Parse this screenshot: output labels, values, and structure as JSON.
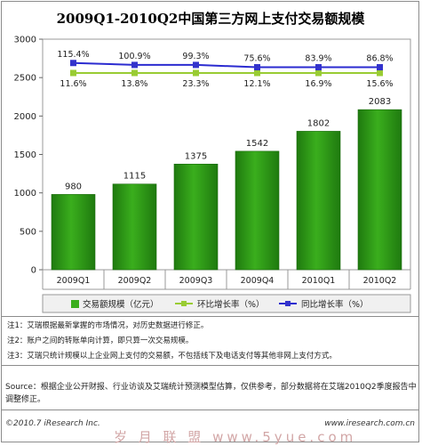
{
  "chart_data": {
    "type": "bar",
    "title": "2009Q1-2010Q2中国第三方网上支付交易额规模",
    "categories": [
      "2009Q1",
      "2009Q2",
      "2009Q3",
      "2009Q4",
      "2010Q1",
      "2010Q2"
    ],
    "ylim": [
      0,
      3000
    ],
    "yticks": [
      0,
      500,
      1000,
      1500,
      2000,
      2500,
      3000
    ],
    "grid": false,
    "legend_placement": "bottom",
    "series": [
      {
        "name": "交易额规模（亿元）",
        "type": "bar",
        "values": [
          980,
          1115,
          1375,
          1542,
          1802,
          2083
        ],
        "labels": [
          "980",
          "1115",
          "1375",
          "1542",
          "1802",
          "2083"
        ]
      },
      {
        "name": "环比增长率（%）",
        "type": "line",
        "values": [
          2560,
          2560,
          2560,
          2560,
          2560,
          2560
        ],
        "labels": [
          "11.6%",
          "13.8%",
          "23.3%",
          "12.1%",
          "16.9%",
          "15.6%"
        ]
      },
      {
        "name": "同比增长率（%）",
        "type": "line",
        "values": [
          2690,
          2665,
          2665,
          2635,
          2635,
          2635
        ],
        "labels": [
          "115.4%",
          "100.9%",
          "99.3%",
          "75.6%",
          "83.9%",
          "86.8%"
        ]
      }
    ],
    "colors": {
      "bar": "#3aae1d",
      "bar_dark": "#1f7a0f",
      "qoq_line": "#99cc33",
      "yoy_line": "#2b2bd0",
      "yoy_marker": "#3333cc",
      "plot_bg": "#ffffff",
      "legend_bg": "#f0f0f0"
    }
  },
  "notes": [
    "注1：艾瑞根据最新掌握的市场情况，对历史数据进行修正。",
    "注2：账户之间的转账单向计算，即只算一次交易规模。",
    "注3：艾瑞只统计规模以上企业网上支付的交易额，不包括线下及电话支付等其他非网上支付方式。"
  ],
  "source": "Source：根据企业公开财报、行业访谈及艾瑞统计预测模型估算，仅供参考，部分数据将在艾瑞2010Q2季度报告中调整修正。",
  "copyright": "©2010.7 iResearch Inc.",
  "site_url": "www.iresearch.com.cn",
  "watermark": "岁 月 联 盟  www.5yue.com"
}
